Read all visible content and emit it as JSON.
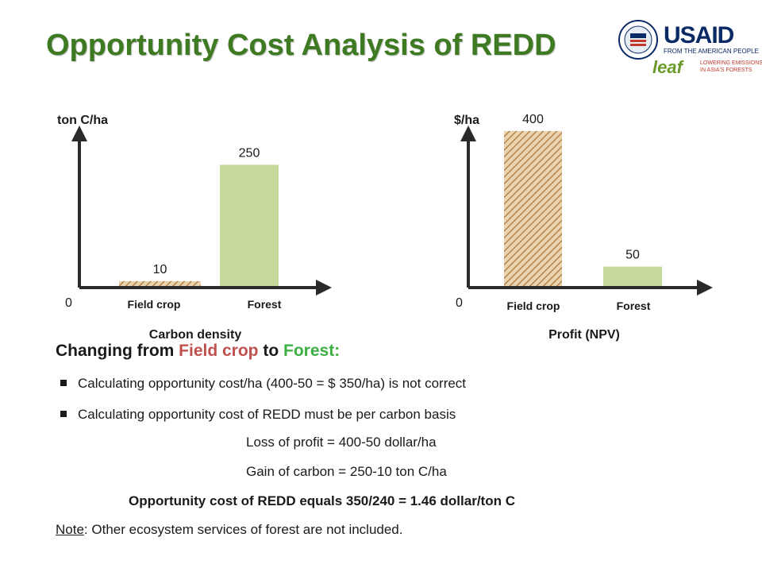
{
  "title": "Opportunity Cost Analysis of REDD",
  "logo": {
    "usaid": "USAID",
    "usaid_tagline": "FROM THE AMERICAN PEOPLE",
    "leaf": "leaf",
    "leaf_tagline_1": "LOWERING EMISSIONS",
    "leaf_tagline_2": "IN ASIA'S FORESTS"
  },
  "colors": {
    "title": "#3d7a22",
    "forest_bar": "#c5d99a",
    "field_bar": "#c8935a",
    "field_name": "#c0504d",
    "forest_name": "#3cb043"
  },
  "chart_data": [
    {
      "type": "bar",
      "title": "Carbon density",
      "ylabel": "ton C/ha",
      "origin_label": "0",
      "categories": [
        "Field crop",
        "Forest"
      ],
      "values": [
        10,
        250
      ],
      "data_labels": [
        "10",
        "250"
      ],
      "ylim": [
        0,
        290
      ],
      "bar_styles": [
        "hatched",
        "solid"
      ],
      "grid": false
    },
    {
      "type": "bar",
      "title": "Profit (NPV)",
      "ylabel": "$/ha",
      "origin_label": "0",
      "categories": [
        "Field crop",
        "Forest"
      ],
      "values": [
        400,
        50
      ],
      "data_labels": [
        "400",
        "50"
      ],
      "ylim": [
        0,
        410
      ],
      "bar_styles": [
        "hatched",
        "solid"
      ],
      "grid": false
    }
  ],
  "text": {
    "heading_prefix": "Changing from ",
    "heading_field": "Field crop",
    "heading_mid": " to ",
    "heading_forest": "Forest:",
    "bullet1": "Calculating opportunity cost/ha (400-50 = $ 350/ha) is not correct",
    "bullet2": "Calculating opportunity cost of REDD must be per carbon basis",
    "loss": "Loss of profit = 400-50 dollar/ha",
    "gain": "Gain of carbon = 250-10 ton C/ha",
    "result": "Opportunity cost of REDD equals 350/240 = 1.46 dollar/ton C",
    "note_label": "Note",
    "note_text": ": Other ecosystem services of forest are not included."
  }
}
